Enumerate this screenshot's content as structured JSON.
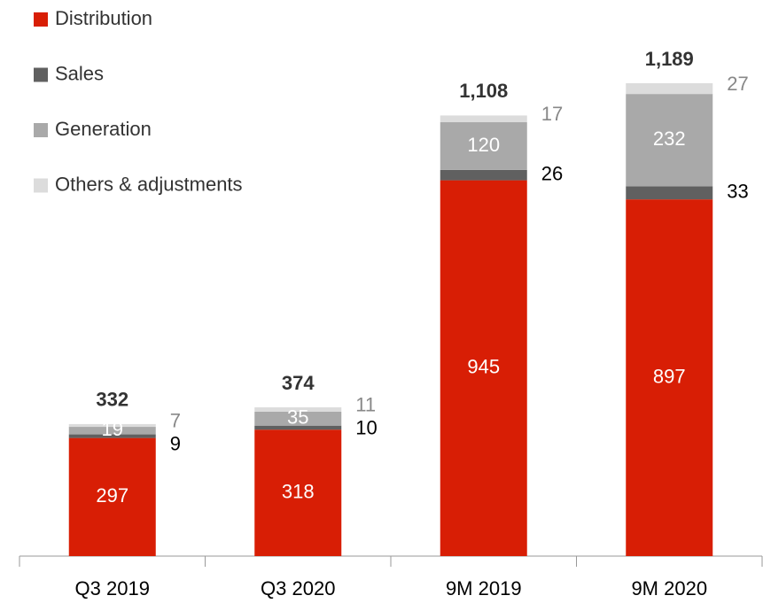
{
  "chart_data": {
    "type": "stacked_bar",
    "categories": [
      "Q3 2019",
      "Q3 2020",
      "9M 2019",
      "9M 2020"
    ],
    "series": [
      {
        "name": "Distribution",
        "color": "#d81e05",
        "values": [
          297,
          318,
          945,
          897
        ]
      },
      {
        "name": "Sales",
        "color": "#606060",
        "values": [
          9,
          10,
          26,
          33
        ]
      },
      {
        "name": "Generation",
        "color": "#a9a9a9",
        "values": [
          19,
          35,
          120,
          232
        ]
      },
      {
        "name": "Others & adjustments",
        "color": "#dcdcdc",
        "values": [
          7,
          11,
          17,
          27
        ]
      }
    ],
    "totals": {
      "values": [
        332,
        374,
        1108,
        1189
      ],
      "value_labels": [
        "332",
        "374",
        "1,108",
        "1,189"
      ]
    }
  }
}
